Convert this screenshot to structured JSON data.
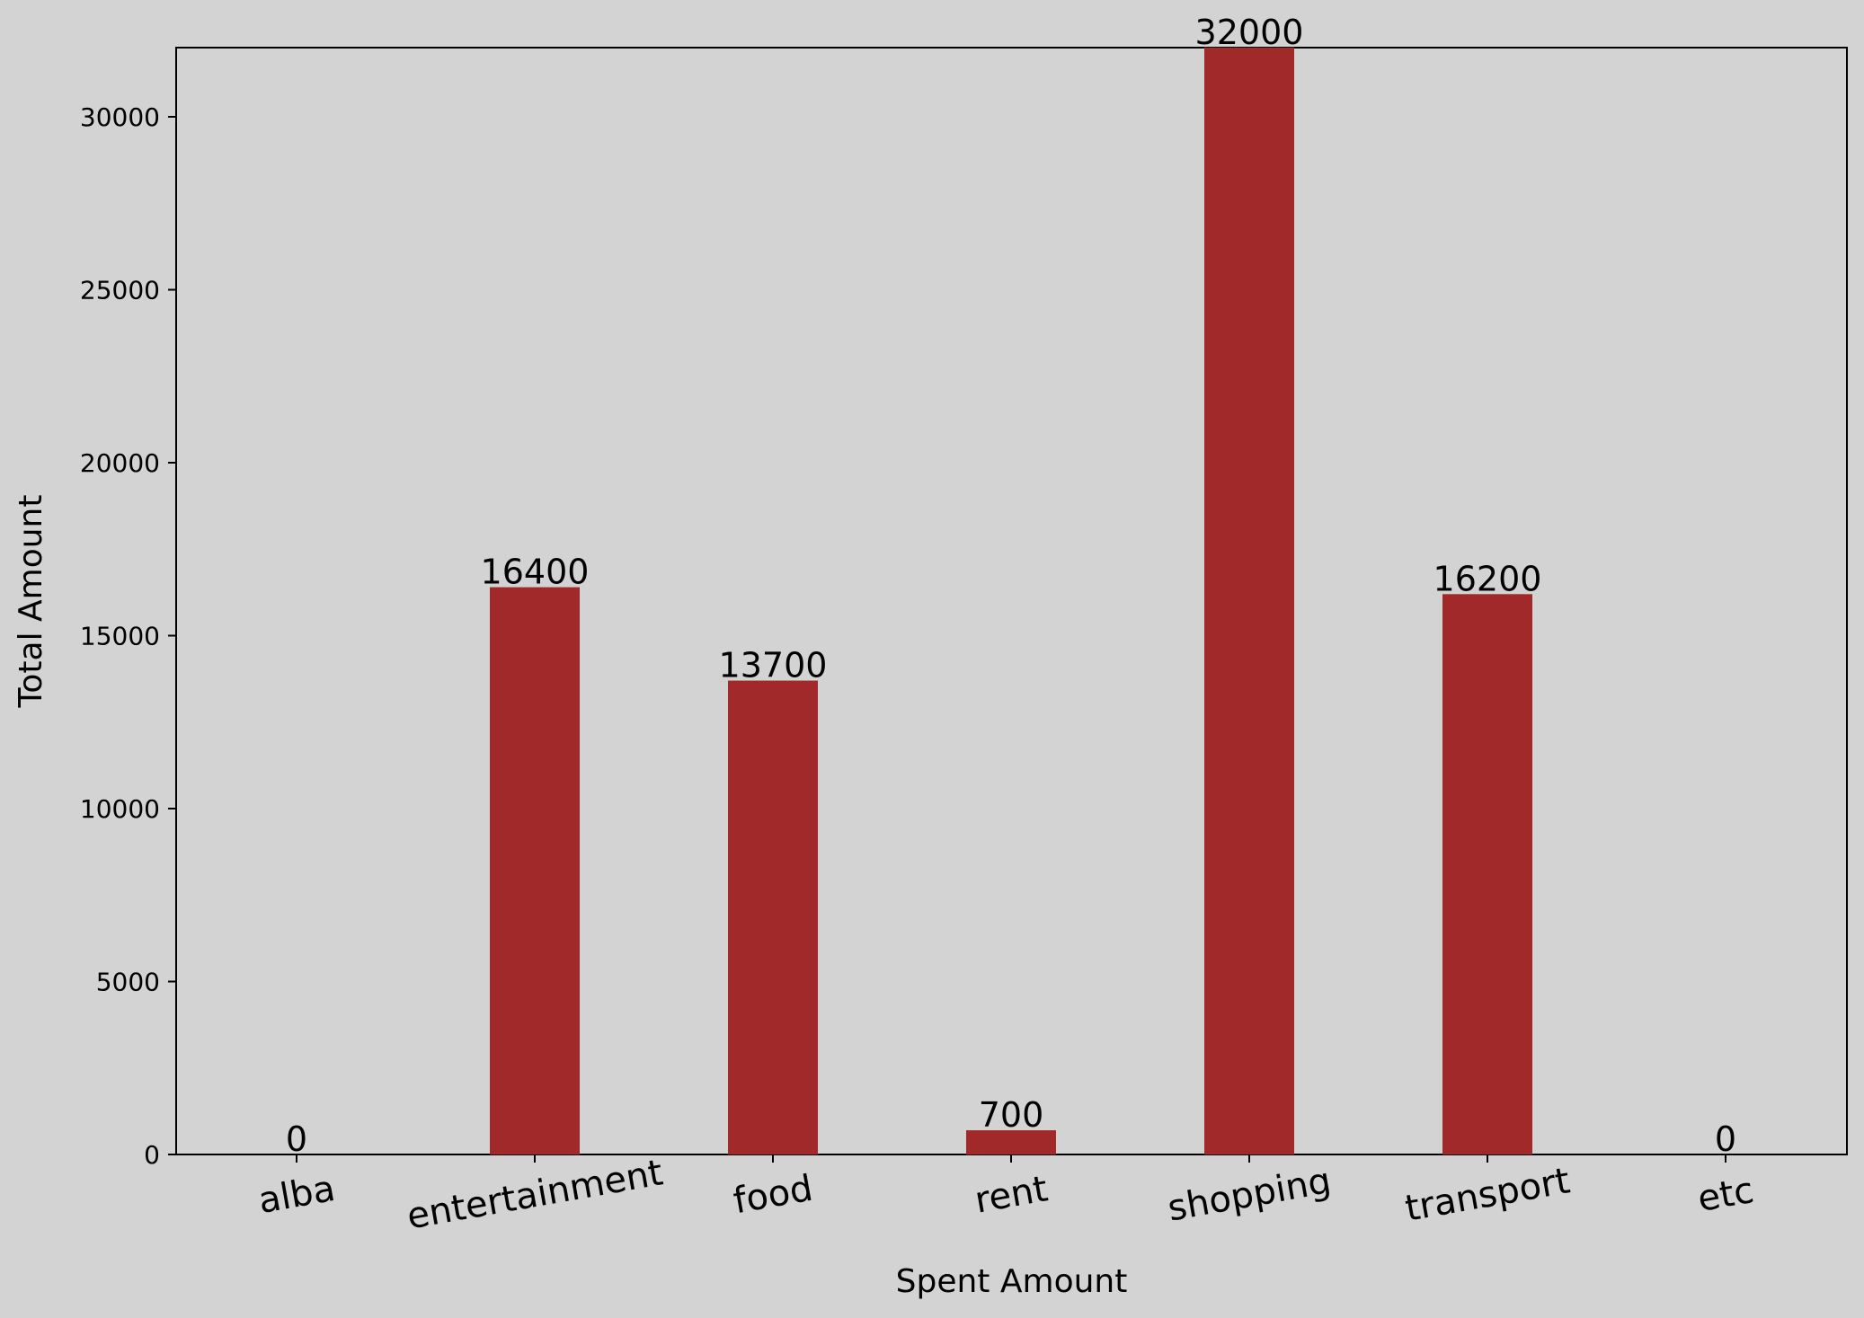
{
  "chart_data": {
    "type": "bar",
    "categories": [
      "alba",
      "entertainment",
      "food",
      "rent",
      "shopping",
      "transport",
      "etc"
    ],
    "values": [
      0,
      16400,
      13700,
      700,
      32000,
      16200,
      0
    ],
    "data_labels": [
      "0",
      "16400",
      "13700",
      "700",
      "32000",
      "16200",
      "0"
    ],
    "title": "",
    "xlabel": "Spent Amount",
    "ylabel": "Total Amount",
    "ylim": [
      0,
      32000
    ],
    "yticks": [
      0,
      5000,
      10000,
      15000,
      20000,
      25000,
      30000
    ],
    "ytick_labels": [
      "0",
      "5000",
      "10000",
      "15000",
      "20000",
      "25000",
      "30000"
    ],
    "grid": false,
    "category_label_rotation_deg": -10,
    "colors": {
      "background": "#d3d3d3",
      "bar": "#a2292a",
      "axis": "#000000"
    }
  }
}
